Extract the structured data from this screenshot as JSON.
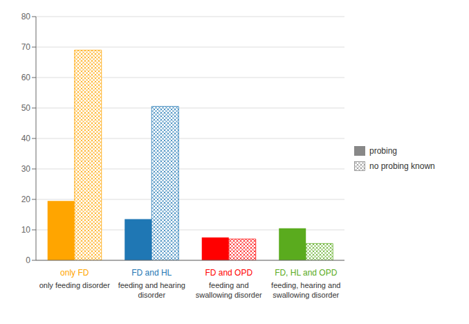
{
  "chart_data": {
    "type": "bar",
    "categories": [
      "only FD",
      "FD and HL",
      "FD and OPD",
      "FD, HL and OPD"
    ],
    "annotations": [
      {
        "category": "only FD",
        "text": "only feeding disorder"
      },
      {
        "category": "FD and HL",
        "text": "feeding and hearing\ndisorder"
      },
      {
        "category": "FD and OPD",
        "text": "feeding and\nswallowing disorder"
      },
      {
        "category": "FD, HL and OPD",
        "text": "feeding, hearing and\nswallowing disorder"
      }
    ],
    "series": [
      {
        "name": "probing",
        "color": "#888888",
        "colors": [
          "#FFA500",
          "#1F77B4",
          "#FF0000",
          "#5AAB1E"
        ],
        "values": [
          19.5,
          13.5,
          7.5,
          10.5
        ]
      },
      {
        "name": "no probing known",
        "color": "#888888",
        "colors": [
          "#FFA500",
          "#1F77B4",
          "#FF0000",
          "#5AAB1E"
        ],
        "values": [
          69,
          50.5,
          7.0,
          5.5
        ]
      }
    ],
    "ylim": [
      0,
      80
    ],
    "yticks": [
      0,
      10,
      20,
      30,
      40,
      50,
      60,
      70,
      80
    ],
    "grid": true,
    "legend": "right"
  }
}
